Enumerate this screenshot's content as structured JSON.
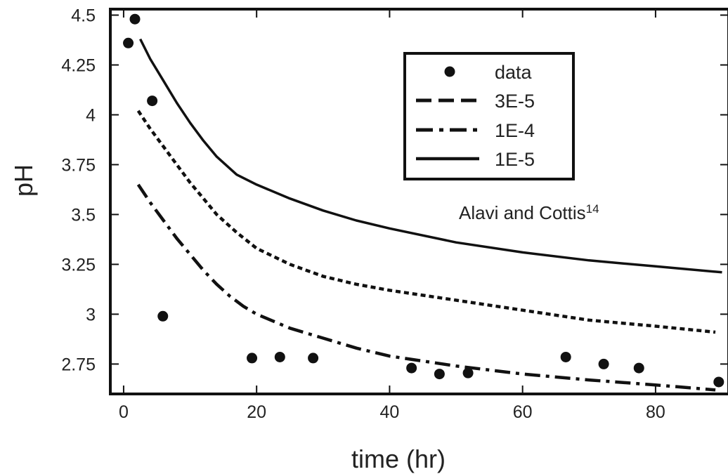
{
  "chart_data": {
    "type": "scatter",
    "title": "",
    "xlabel": "time (hr)",
    "ylabel": "pH",
    "xlim": [
      -2,
      91
    ],
    "ylim": [
      2.6,
      4.53
    ],
    "xticks": [
      0,
      20,
      40,
      60,
      80
    ],
    "yticks": [
      2.75,
      3,
      3.25,
      3.5,
      3.75,
      4,
      4.25,
      4.5
    ],
    "xtick_labels": [
      "0",
      "20",
      "40",
      "60",
      "80"
    ],
    "ytick_labels": [
      "2.75",
      "3",
      "3.25",
      "3.5",
      "3.75",
      "4",
      "4.25",
      "4.5"
    ],
    "grid": false,
    "legend_position": "top-right",
    "annotation": {
      "text": "Alavi and Cottis",
      "superscript": "14"
    },
    "series": [
      {
        "name": "data",
        "style": "markers",
        "color": "#111111",
        "x": [
          0.7,
          1.7,
          4.3,
          5.9,
          19.3,
          23.5,
          28.5,
          43.3,
          47.5,
          51.8,
          66.5,
          72.2,
          77.5,
          89.5
        ],
        "y": [
          4.36,
          4.48,
          4.07,
          2.99,
          2.78,
          2.785,
          2.78,
          2.73,
          2.7,
          2.705,
          2.785,
          2.75,
          2.73,
          2.66
        ]
      },
      {
        "name": "3E-5",
        "style": "dashed",
        "color": "#111111",
        "x": [
          2.2,
          4,
          6,
          8,
          10,
          12,
          14,
          17,
          20,
          25,
          30,
          35,
          40,
          50,
          60,
          70,
          80,
          89
        ],
        "y": [
          4.02,
          3.93,
          3.84,
          3.75,
          3.66,
          3.58,
          3.5,
          3.41,
          3.33,
          3.25,
          3.19,
          3.15,
          3.12,
          3.07,
          3.02,
          2.97,
          2.94,
          2.91
        ]
      },
      {
        "name": "1E-4",
        "style": "dash-dot",
        "color": "#111111",
        "x": [
          2.2,
          4,
          6,
          8,
          10,
          12,
          14,
          16,
          18,
          20,
          25,
          30,
          35,
          40,
          50,
          60,
          70,
          80,
          89
        ],
        "y": [
          3.65,
          3.56,
          3.47,
          3.38,
          3.3,
          3.22,
          3.15,
          3.09,
          3.04,
          3.0,
          2.93,
          2.88,
          2.83,
          2.79,
          2.74,
          2.7,
          2.67,
          2.645,
          2.62
        ]
      },
      {
        "name": "1E-5",
        "style": "solid",
        "color": "#111111",
        "x": [
          2.5,
          4,
          6,
          8,
          10,
          12,
          14,
          17,
          20,
          25,
          30,
          35,
          40,
          50,
          60,
          70,
          80,
          90
        ],
        "y": [
          4.38,
          4.28,
          4.17,
          4.06,
          3.96,
          3.87,
          3.79,
          3.7,
          3.65,
          3.58,
          3.52,
          3.47,
          3.43,
          3.36,
          3.31,
          3.27,
          3.24,
          3.21
        ]
      }
    ]
  }
}
